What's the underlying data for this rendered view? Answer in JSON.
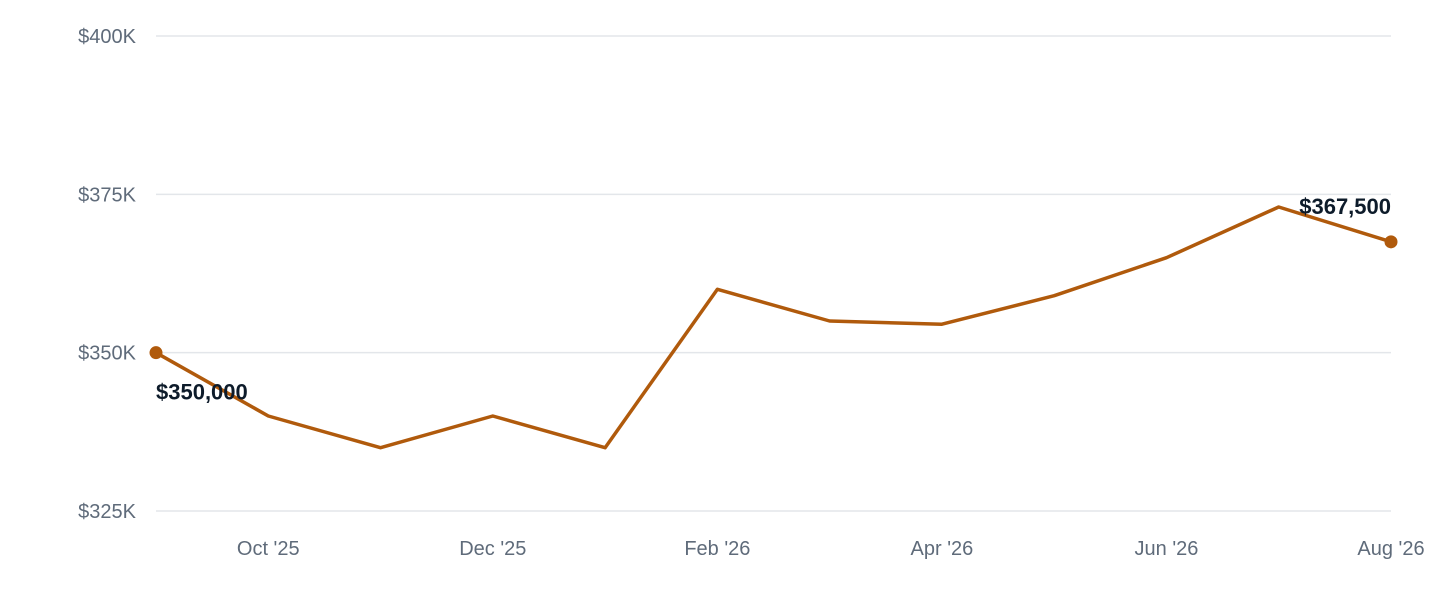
{
  "chart_data": {
    "type": "line",
    "x": [
      "Sep '25",
      "Oct '25",
      "Nov '25",
      "Dec '25",
      "Jan '26",
      "Feb '26",
      "Mar '26",
      "Apr '26",
      "May '26",
      "Jun '26",
      "Jul '26",
      "Aug '26"
    ],
    "series": [
      {
        "values": [
          350000,
          340000,
          335000,
          340000,
          335000,
          360000,
          355000,
          354500,
          359000,
          365000,
          373000,
          367500
        ],
        "color": "#b05a0c"
      }
    ],
    "x_tick_labels": [
      "Oct '25",
      "Dec '25",
      "Feb '26",
      "Apr '26",
      "Jun '26",
      "Aug '26"
    ],
    "y_tick_labels": [
      "$325K",
      "$350K",
      "$375K",
      "$400K"
    ],
    "y_ticks": [
      325000,
      350000,
      375000,
      400000
    ],
    "ylim": [
      325000,
      400000
    ],
    "grid": true,
    "annotations": [
      {
        "x": "Sep '25",
        "text": "$350,000"
      },
      {
        "x": "Aug '26",
        "text": "$367,500"
      }
    ]
  }
}
